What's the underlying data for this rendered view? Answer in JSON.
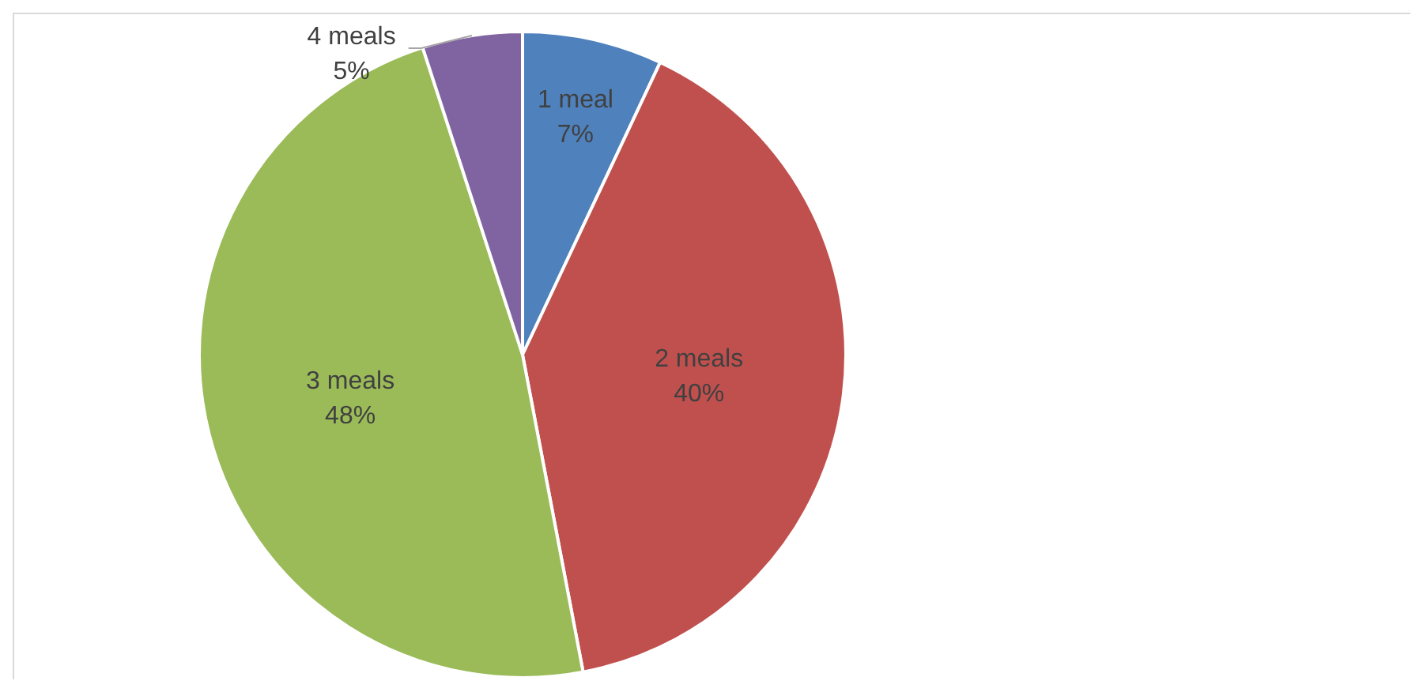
{
  "chart_data": {
    "type": "pie",
    "categories": [
      "1 meal",
      "2 meals",
      "3 meals",
      "4 meals"
    ],
    "values": [
      7,
      40,
      48,
      5
    ],
    "colors": [
      "#4f81bd",
      "#c0504d",
      "#9bbb59",
      "#8064a2"
    ],
    "value_labels": [
      "7%",
      "40%",
      "48%",
      "5%"
    ],
    "legend": false
  }
}
